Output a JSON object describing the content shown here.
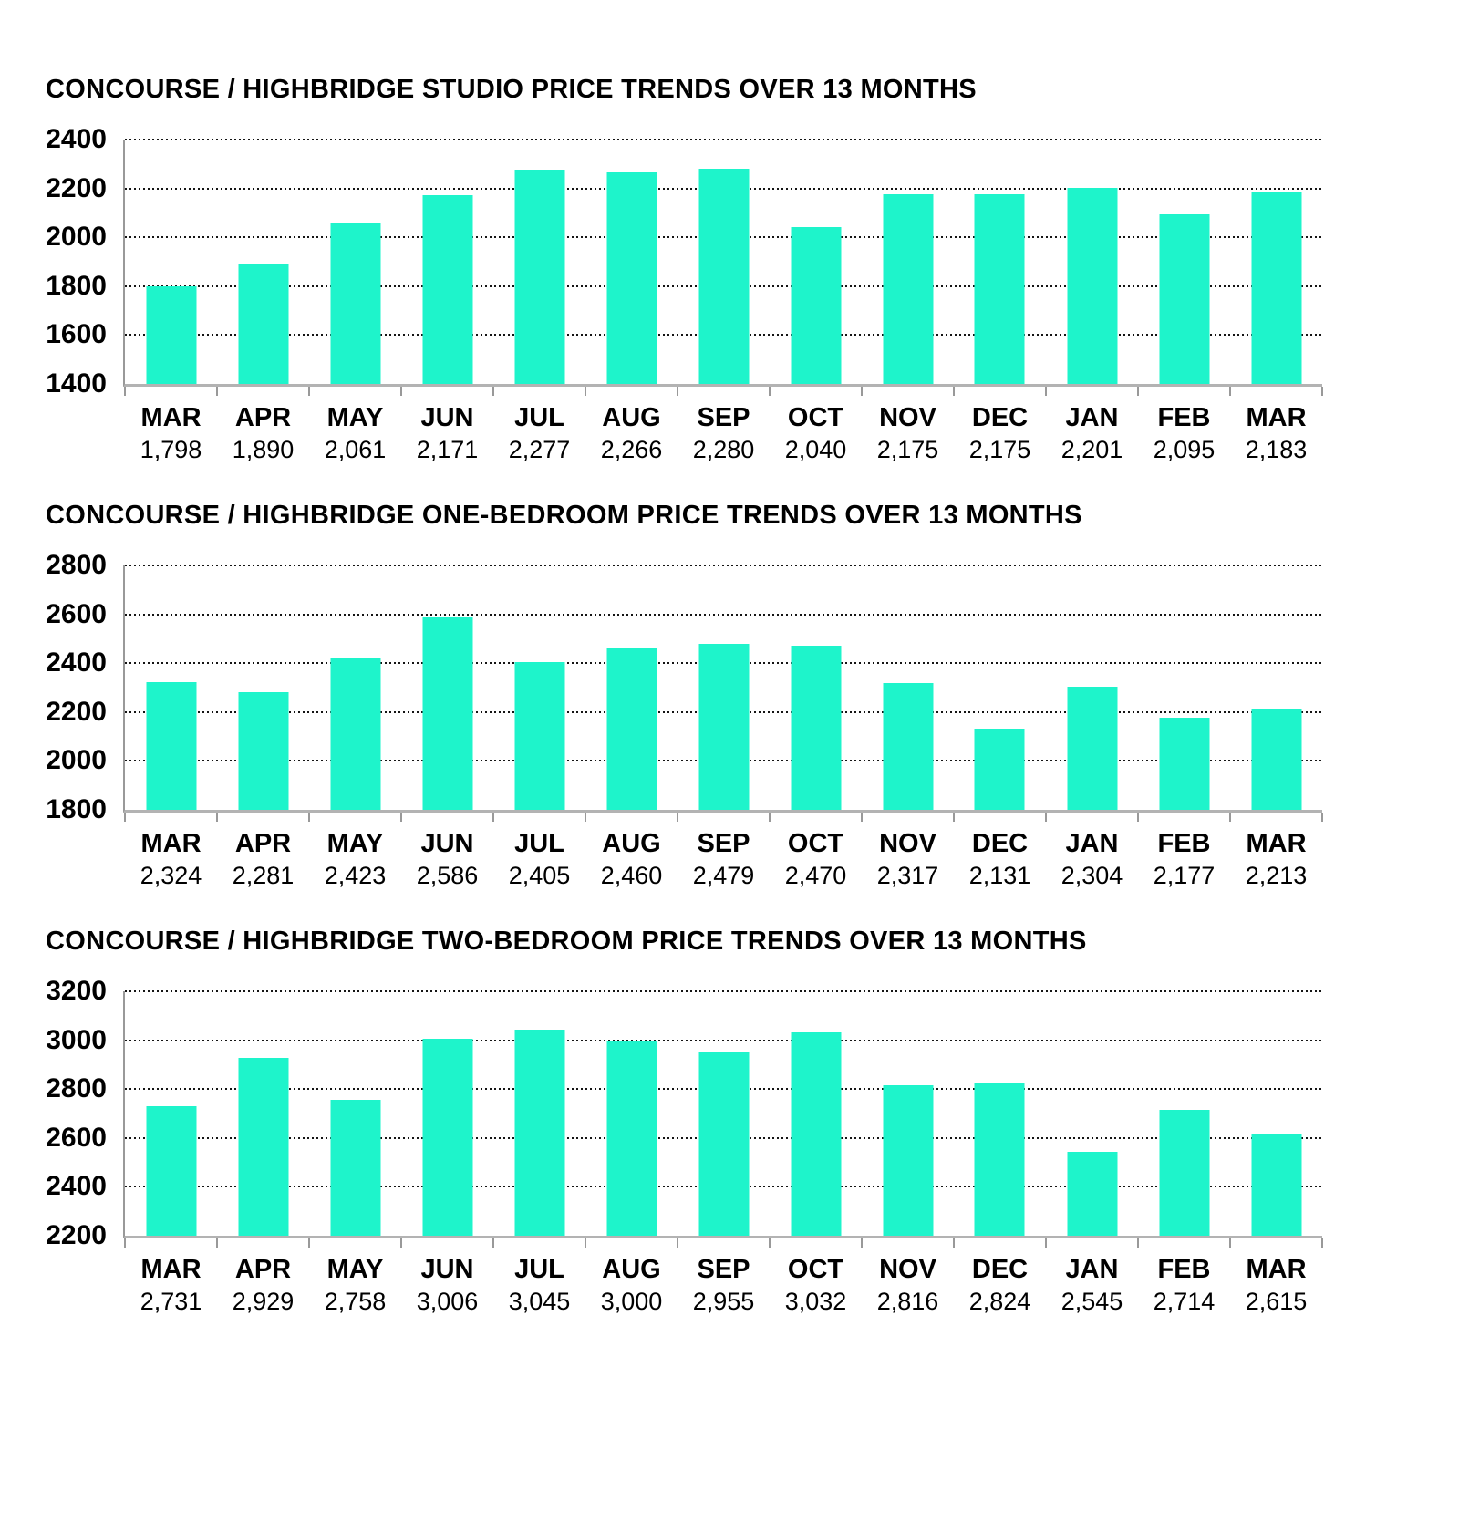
{
  "style": {
    "background": "#FFFFFF",
    "bar_color": "#1EF4CB",
    "gridline_color": "#141414",
    "axis_color": "#B3B3B3",
    "left_axis_color": "#999999",
    "tick_color": "#999999",
    "text_color": "#000000"
  },
  "chart_data": [
    {
      "type": "bar",
      "title": "CONCOURSE / HIGHBRIDGE STUDIO PRICE TRENDS OVER 13 MONTHS",
      "categories": [
        "MAR",
        "APR",
        "MAY",
        "JUN",
        "JUL",
        "AUG",
        "SEP",
        "OCT",
        "NOV",
        "DEC",
        "JAN",
        "FEB",
        "MAR"
      ],
      "values": [
        1798,
        1890,
        2061,
        2171,
        2277,
        2266,
        2280,
        2040,
        2175,
        2175,
        2201,
        2095,
        2183
      ],
      "value_labels": [
        "1,798",
        "1,890",
        "2,061",
        "2,171",
        "2,277",
        "2,266",
        "2,280",
        "2,040",
        "2,175",
        "2,175",
        "2,201",
        "2,095",
        "2,183"
      ],
      "xlabel": "",
      "ylabel": "",
      "ylim": [
        1400,
        2400
      ],
      "yticks": [
        2400,
        2200,
        2000,
        1800,
        1600,
        1400
      ],
      "grid": "horizontal-dotted",
      "legend": "none"
    },
    {
      "type": "bar",
      "title": "CONCOURSE / HIGHBRIDGE ONE-BEDROOM PRICE TRENDS OVER 13 MONTHS",
      "categories": [
        "MAR",
        "APR",
        "MAY",
        "JUN",
        "JUL",
        "AUG",
        "SEP",
        "OCT",
        "NOV",
        "DEC",
        "JAN",
        "FEB",
        "MAR"
      ],
      "values": [
        2324,
        2281,
        2423,
        2586,
        2405,
        2460,
        2479,
        2470,
        2317,
        2131,
        2304,
        2177,
        2213
      ],
      "value_labels": [
        "2,324",
        "2,281",
        "2,423",
        "2,586",
        "2,405",
        "2,460",
        "2,479",
        "2,470",
        "2,317",
        "2,131",
        "2,304",
        "2,177",
        "2,213"
      ],
      "xlabel": "",
      "ylabel": "",
      "ylim": [
        1800,
        2800
      ],
      "yticks": [
        2800,
        2600,
        2400,
        2200,
        2000,
        1800
      ],
      "grid": "horizontal-dotted",
      "legend": "none"
    },
    {
      "type": "bar",
      "title": "CONCOURSE / HIGHBRIDGE TWO-BEDROOM PRICE TRENDS OVER 13 MONTHS",
      "categories": [
        "MAR",
        "APR",
        "MAY",
        "JUN",
        "JUL",
        "AUG",
        "SEP",
        "OCT",
        "NOV",
        "DEC",
        "JAN",
        "FEB",
        "MAR"
      ],
      "values": [
        2731,
        2929,
        2758,
        3006,
        3045,
        3000,
        2955,
        3032,
        2816,
        2824,
        2545,
        2714,
        2615
      ],
      "value_labels": [
        "2,731",
        "2,929",
        "2,758",
        "3,006",
        "3,045",
        "3,000",
        "2,955",
        "3,032",
        "2,816",
        "2,824",
        "2,545",
        "2,714",
        "2,615"
      ],
      "xlabel": "",
      "ylabel": "",
      "ylim": [
        2200,
        3200
      ],
      "yticks": [
        3200,
        3000,
        2800,
        2600,
        2400,
        2200
      ],
      "grid": "horizontal-dotted",
      "legend": "none"
    }
  ]
}
